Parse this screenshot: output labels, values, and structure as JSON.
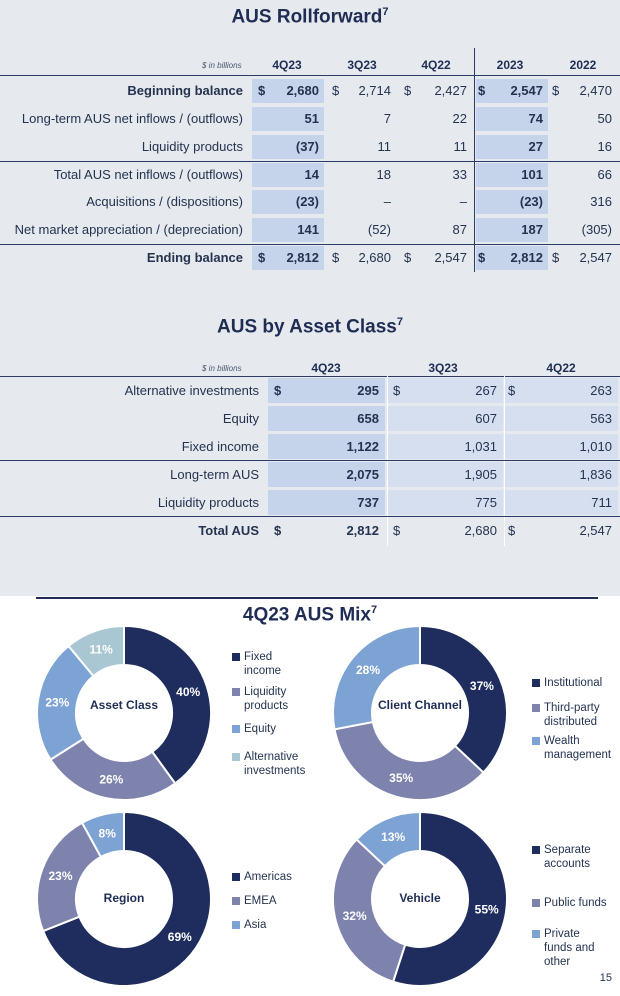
{
  "rollforward": {
    "title": "AUS Rollforward",
    "footnote": "7",
    "unit": "$ in billions",
    "columns": [
      "4Q23",
      "3Q23",
      "4Q22",
      "2023",
      "2022"
    ],
    "rows": [
      {
        "label": "Beginning balance",
        "dollar": "$",
        "values": [
          "2,680",
          "2,714",
          "2,427",
          "2,547",
          "2,470"
        ]
      },
      {
        "label": "Long-term AUS net inflows / (outflows)",
        "values": [
          "51",
          "7",
          "22",
          "74",
          "50"
        ]
      },
      {
        "label": "Liquidity products",
        "values": [
          "(37)",
          "11",
          "11",
          "27",
          "16"
        ]
      },
      {
        "label": "Total AUS net inflows / (outflows)",
        "values": [
          "14",
          "18",
          "33",
          "101",
          "66"
        ]
      },
      {
        "label": "Acquisitions / (dispositions)",
        "values": [
          "(23)",
          "–",
          "–",
          "(23)",
          "316"
        ]
      },
      {
        "label": "Net market appreciation / (depreciation)",
        "values": [
          "141",
          "(52)",
          "87",
          "187",
          "(305)"
        ]
      },
      {
        "label": "Ending balance",
        "dollar": "$",
        "values": [
          "2,812",
          "2,680",
          "2,547",
          "2,812",
          "2,547"
        ]
      }
    ]
  },
  "asset_class": {
    "title": "AUS by Asset Class",
    "footnote": "7",
    "unit": "$ in billions",
    "columns": [
      "4Q23",
      "3Q23",
      "4Q22"
    ],
    "rows": [
      {
        "label": "Alternative investments",
        "dollar": "$",
        "values": [
          "295",
          "267",
          "263"
        ]
      },
      {
        "label": "Equity",
        "values": [
          "658",
          "607",
          "563"
        ]
      },
      {
        "label": "Fixed income",
        "values": [
          "1,122",
          "1,031",
          "1,010"
        ]
      },
      {
        "label": "Long-term AUS",
        "values": [
          "2,075",
          "1,905",
          "1,836"
        ]
      },
      {
        "label": "Liquidity products",
        "values": [
          "737",
          "775",
          "711"
        ]
      },
      {
        "label": "Total AUS",
        "dollar": "$",
        "values": [
          "2,812",
          "2,680",
          "2,547"
        ]
      }
    ]
  },
  "mix": {
    "title": "4Q23 AUS Mix",
    "footnote": "7",
    "page_number": "15"
  },
  "chart_data": [
    {
      "type": "pie",
      "title": "Asset Class",
      "categories": [
        "Fixed income",
        "Liquidity products",
        "Equity",
        "Alternative investments"
      ],
      "values": [
        40,
        26,
        23,
        11
      ],
      "labels": [
        "40%",
        "26%",
        "23%",
        "11%"
      ],
      "colors": [
        "#1f2d5e",
        "#7e83ad",
        "#7da3d4",
        "#a9c7d2"
      ],
      "legend_labels": [
        "Fixed\nincome",
        "Liquidity\nproducts",
        "Equity",
        "Alternative\ninvestments"
      ]
    },
    {
      "type": "pie",
      "title": "Client Channel",
      "categories": [
        "Institutional",
        "Third-party distributed",
        "Wealth management"
      ],
      "values": [
        37,
        35,
        28
      ],
      "labels": [
        "37%",
        "35%",
        "28%"
      ],
      "colors": [
        "#1f2d5e",
        "#7e83ad",
        "#7da3d4"
      ],
      "legend_labels": [
        "Institutional",
        "Third-party\ndistributed",
        "Wealth\nmanagement"
      ]
    },
    {
      "type": "pie",
      "title": "Region",
      "categories": [
        "Americas",
        "EMEA",
        "Asia"
      ],
      "values": [
        69,
        23,
        8
      ],
      "labels": [
        "69%",
        "23%",
        "8%"
      ],
      "colors": [
        "#1f2d5e",
        "#7e83ad",
        "#7da3d4"
      ],
      "legend_labels": [
        "Americas",
        "EMEA",
        "Asia"
      ]
    },
    {
      "type": "pie",
      "title": "Vehicle",
      "categories": [
        "Separate accounts",
        "Public funds",
        "Private funds and other"
      ],
      "values": [
        55,
        32,
        13
      ],
      "labels": [
        "55%",
        "32%",
        "13%"
      ],
      "colors": [
        "#1f2d5e",
        "#7e83ad",
        "#7da3d4"
      ],
      "legend_labels": [
        "Separate\naccounts",
        "Public funds",
        "Private\nfunds and\nother"
      ]
    }
  ]
}
